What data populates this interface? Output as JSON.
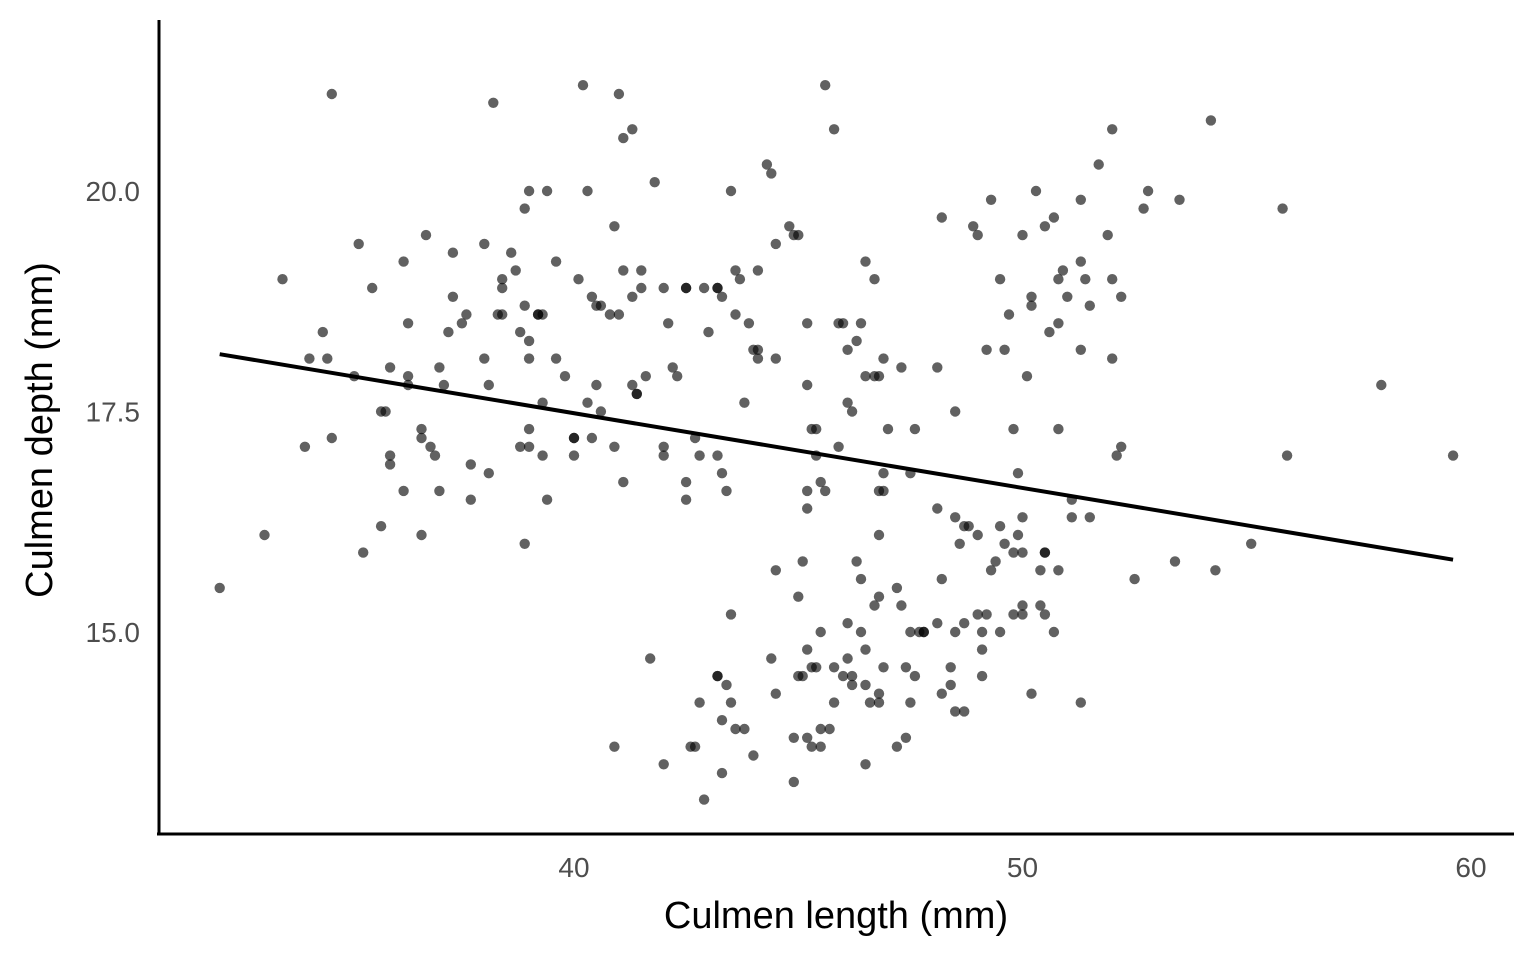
{
  "chart_data": {
    "type": "scatter",
    "title": "",
    "xlabel": "Culmen length (mm)",
    "ylabel": "Culmen depth (mm)",
    "xlim": [
      31.2,
      61.0
    ],
    "ylim": [
      12.7,
      21.9
    ],
    "x_ticks": [
      40,
      50,
      60
    ],
    "x_tick_labels": [
      "40",
      "50",
      "60"
    ],
    "y_ticks": [
      15.0,
      17.5,
      20.0
    ],
    "y_tick_labels": [
      "15.0",
      "17.5",
      "20.0"
    ],
    "grid": false,
    "point_color": "#000000",
    "point_opacity": 0.62,
    "trend_line": {
      "x": [
        32.1,
        59.6
      ],
      "y": [
        18.15,
        15.82
      ]
    },
    "points": [
      [
        32.1,
        15.5
      ],
      [
        33.1,
        16.1
      ],
      [
        33.5,
        19.0
      ],
      [
        34.0,
        17.1
      ],
      [
        34.1,
        18.1
      ],
      [
        34.4,
        18.4
      ],
      [
        34.5,
        18.1
      ],
      [
        34.6,
        21.1
      ],
      [
        34.6,
        17.2
      ],
      [
        35.1,
        17.9
      ],
      [
        35.2,
        19.4
      ],
      [
        35.3,
        15.9
      ],
      [
        35.5,
        18.9
      ],
      [
        35.7,
        16.2
      ],
      [
        35.7,
        17.5
      ],
      [
        35.8,
        17.5
      ],
      [
        35.9,
        16.9
      ],
      [
        35.9,
        17.0
      ],
      [
        35.9,
        18.0
      ],
      [
        36.2,
        19.2
      ],
      [
        36.2,
        16.6
      ],
      [
        36.3,
        18.5
      ],
      [
        36.3,
        17.8
      ],
      [
        36.3,
        17.9
      ],
      [
        36.6,
        17.3
      ],
      [
        36.6,
        17.2
      ],
      [
        36.6,
        16.1
      ],
      [
        36.7,
        19.5
      ],
      [
        36.8,
        17.1
      ],
      [
        36.9,
        17.0
      ],
      [
        37.0,
        16.6
      ],
      [
        37.0,
        18.0
      ],
      [
        37.1,
        17.8
      ],
      [
        37.2,
        18.4
      ],
      [
        37.3,
        19.3
      ],
      [
        37.3,
        18.8
      ],
      [
        37.5,
        18.5
      ],
      [
        37.6,
        18.6
      ],
      [
        37.7,
        16.5
      ],
      [
        37.7,
        16.9
      ],
      [
        38.0,
        19.4
      ],
      [
        38.0,
        18.1
      ],
      [
        38.1,
        16.8
      ],
      [
        38.1,
        17.8
      ],
      [
        38.2,
        21.0
      ],
      [
        38.3,
        18.6
      ],
      [
        38.4,
        19.0
      ],
      [
        38.4,
        18.6
      ],
      [
        38.4,
        18.9
      ],
      [
        38.6,
        19.3
      ],
      [
        38.7,
        19.1
      ],
      [
        38.8,
        17.1
      ],
      [
        38.8,
        18.4
      ],
      [
        38.9,
        19.8
      ],
      [
        38.9,
        16.0
      ],
      [
        38.9,
        18.7
      ],
      [
        39.0,
        20.0
      ],
      [
        39.0,
        18.3
      ],
      [
        39.0,
        17.3
      ],
      [
        39.0,
        18.1
      ],
      [
        39.0,
        17.1
      ],
      [
        39.2,
        18.6
      ],
      [
        39.2,
        18.6
      ],
      [
        39.3,
        17.6
      ],
      [
        39.3,
        17.0
      ],
      [
        39.3,
        18.6
      ],
      [
        39.4,
        16.5
      ],
      [
        39.4,
        20.0
      ],
      [
        39.6,
        18.1
      ],
      [
        39.6,
        19.2
      ],
      [
        39.8,
        17.9
      ],
      [
        40.0,
        17.2
      ],
      [
        40.0,
        17.0
      ],
      [
        40.0,
        17.2
      ],
      [
        40.1,
        19.0
      ],
      [
        40.2,
        21.2
      ],
      [
        40.3,
        20.0
      ],
      [
        40.3,
        17.6
      ],
      [
        40.4,
        18.8
      ],
      [
        40.4,
        17.2
      ],
      [
        40.5,
        18.7
      ],
      [
        40.5,
        17.8
      ],
      [
        40.6,
        17.5
      ],
      [
        40.6,
        18.7
      ],
      [
        40.8,
        18.6
      ],
      [
        40.9,
        17.1
      ],
      [
        40.9,
        19.6
      ],
      [
        41.0,
        18.6
      ],
      [
        41.0,
        21.1
      ],
      [
        41.1,
        20.6
      ],
      [
        41.1,
        19.1
      ],
      [
        41.1,
        16.7
      ],
      [
        41.3,
        17.8
      ],
      [
        41.3,
        18.8
      ],
      [
        41.3,
        20.7
      ],
      [
        41.4,
        17.7
      ],
      [
        41.4,
        17.7
      ],
      [
        41.5,
        19.1
      ],
      [
        41.5,
        18.9
      ],
      [
        41.6,
        17.9
      ],
      [
        41.8,
        20.1
      ],
      [
        42.0,
        18.9
      ],
      [
        42.0,
        17.0
      ],
      [
        42.0,
        17.1
      ],
      [
        42.1,
        18.5
      ],
      [
        42.2,
        18.0
      ],
      [
        42.3,
        17.9
      ],
      [
        42.5,
        18.9
      ],
      [
        42.5,
        16.5
      ],
      [
        42.5,
        18.9
      ],
      [
        42.7,
        17.2
      ],
      [
        42.8,
        17.0
      ],
      [
        42.9,
        18.9
      ],
      [
        43.0,
        18.4
      ],
      [
        43.2,
        17.0
      ],
      [
        43.2,
        18.9
      ],
      [
        43.2,
        18.9
      ],
      [
        43.3,
        18.8
      ],
      [
        43.3,
        16.8
      ],
      [
        43.4,
        16.6
      ],
      [
        43.5,
        20.0
      ],
      [
        43.6,
        19.1
      ],
      [
        43.6,
        18.6
      ],
      [
        43.7,
        19.0
      ],
      [
        43.8,
        17.6
      ],
      [
        43.9,
        18.5
      ],
      [
        44.0,
        18.2
      ],
      [
        44.1,
        18.1
      ],
      [
        44.1,
        18.2
      ],
      [
        44.1,
        19.1
      ],
      [
        44.3,
        20.3
      ],
      [
        44.4,
        20.2
      ],
      [
        44.5,
        19.4
      ],
      [
        44.5,
        18.1
      ],
      [
        44.8,
        19.6
      ],
      [
        44.9,
        19.5
      ],
      [
        45.0,
        19.5
      ],
      [
        45.2,
        18.5
      ],
      [
        45.3,
        17.3
      ],
      [
        45.4,
        17.3
      ],
      [
        45.5,
        16.7
      ],
      [
        45.6,
        21.2
      ],
      [
        45.8,
        20.7
      ],
      [
        45.9,
        18.5
      ],
      [
        46.0,
        18.5
      ],
      [
        46.1,
        17.6
      ],
      [
        46.3,
        18.3
      ],
      [
        46.4,
        18.5
      ],
      [
        46.5,
        19.2
      ],
      [
        46.7,
        19.0
      ],
      [
        46.8,
        16.6
      ],
      [
        46.9,
        18.1
      ],
      [
        47.3,
        18.0
      ],
      [
        47.6,
        17.3
      ],
      [
        48.1,
        18.0
      ],
      [
        48.2,
        19.7
      ],
      [
        48.5,
        17.5
      ],
      [
        48.9,
        19.6
      ],
      [
        49.0,
        19.5
      ],
      [
        49.2,
        18.2
      ],
      [
        49.3,
        19.9
      ],
      [
        49.5,
        19.0
      ],
      [
        49.6,
        18.2
      ],
      [
        49.7,
        18.6
      ],
      [
        49.8,
        17.3
      ],
      [
        50.0,
        19.5
      ],
      [
        50.1,
        17.9
      ],
      [
        50.2,
        18.8
      ],
      [
        50.2,
        18.7
      ],
      [
        50.3,
        20.0
      ],
      [
        50.5,
        19.6
      ],
      [
        50.6,
        18.4
      ],
      [
        50.7,
        19.7
      ],
      [
        50.8,
        18.5
      ],
      [
        50.8,
        19.0
      ],
      [
        50.9,
        19.1
      ],
      [
        51.0,
        18.8
      ],
      [
        51.3,
        19.9
      ],
      [
        51.3,
        18.2
      ],
      [
        51.3,
        19.2
      ],
      [
        51.4,
        19.0
      ],
      [
        51.5,
        18.7
      ],
      [
        51.7,
        20.3
      ],
      [
        51.9,
        19.5
      ],
      [
        52.0,
        18.1
      ],
      [
        52.0,
        20.7
      ],
      [
        52.0,
        19.0
      ],
      [
        52.2,
        18.8
      ],
      [
        52.7,
        19.8
      ],
      [
        52.8,
        20.0
      ],
      [
        53.5,
        19.9
      ],
      [
        54.2,
        20.8
      ],
      [
        55.8,
        19.8
      ],
      [
        58.0,
        17.8
      ],
      [
        46.1,
        18.2
      ],
      [
        45.9,
        17.1
      ],
      [
        46.2,
        17.5
      ],
      [
        46.5,
        17.9
      ],
      [
        46.9,
        16.6
      ],
      [
        47.0,
        17.3
      ],
      [
        45.4,
        17.0
      ],
      [
        45.6,
        16.6
      ],
      [
        46.7,
        17.9
      ],
      [
        46.8,
        17.9
      ],
      [
        45.2,
        17.8
      ],
      [
        45.2,
        16.6
      ],
      [
        45.2,
        16.4
      ],
      [
        46.9,
        16.8
      ],
      [
        42.5,
        16.7
      ],
      [
        50.8,
        17.3
      ],
      [
        52.1,
        17.0
      ],
      [
        52.2,
        17.1
      ],
      [
        49.9,
        16.8
      ],
      [
        51.1,
        16.5
      ],
      [
        51.1,
        16.3
      ],
      [
        51.5,
        16.3
      ],
      [
        55.9,
        17.0
      ],
      [
        59.6,
        17.0
      ],
      [
        46.8,
        16.1
      ],
      [
        47.5,
        16.8
      ],
      [
        48.1,
        16.4
      ],
      [
        48.5,
        16.3
      ],
      [
        48.6,
        16.0
      ],
      [
        48.7,
        16.2
      ],
      [
        49.0,
        16.1
      ],
      [
        49.2,
        15.2
      ],
      [
        49.3,
        15.7
      ],
      [
        49.4,
        15.8
      ],
      [
        49.5,
        16.2
      ],
      [
        49.6,
        16.0
      ],
      [
        49.8,
        15.9
      ],
      [
        49.9,
        16.1
      ],
      [
        50.0,
        16.3
      ],
      [
        50.0,
        15.9
      ],
      [
        50.5,
        15.9
      ],
      [
        50.5,
        15.9
      ],
      [
        50.4,
        15.7
      ],
      [
        50.8,
        15.7
      ],
      [
        52.5,
        15.6
      ],
      [
        53.4,
        15.8
      ],
      [
        54.3,
        15.7
      ],
      [
        55.1,
        16.0
      ],
      [
        44.5,
        15.7
      ],
      [
        45.1,
        15.8
      ],
      [
        45.3,
        13.7
      ],
      [
        45.5,
        13.7
      ],
      [
        45.5,
        13.9
      ],
      [
        45.7,
        13.9
      ],
      [
        45.8,
        14.6
      ],
      [
        46.0,
        14.5
      ],
      [
        46.1,
        14.7
      ],
      [
        46.1,
        15.1
      ],
      [
        46.2,
        14.4
      ],
      [
        46.2,
        14.5
      ],
      [
        46.3,
        15.8
      ],
      [
        46.4,
        15.0
      ],
      [
        46.4,
        15.6
      ],
      [
        46.5,
        14.8
      ],
      [
        46.5,
        14.4
      ],
      [
        46.5,
        13.5
      ],
      [
        46.6,
        14.2
      ],
      [
        46.7,
        15.3
      ],
      [
        46.8,
        15.4
      ],
      [
        46.8,
        14.3
      ],
      [
        46.9,
        14.6
      ],
      [
        47.2,
        15.5
      ],
      [
        47.2,
        13.7
      ],
      [
        47.3,
        15.3
      ],
      [
        47.4,
        14.6
      ],
      [
        47.4,
        13.8
      ],
      [
        47.5,
        14.2
      ],
      [
        47.5,
        15.0
      ],
      [
        47.6,
        14.5
      ],
      [
        47.7,
        15.0
      ],
      [
        47.8,
        15.0
      ],
      [
        48.1,
        15.1
      ],
      [
        48.2,
        14.3
      ],
      [
        48.2,
        15.6
      ],
      [
        48.4,
        14.4
      ],
      [
        48.4,
        14.6
      ],
      [
        48.5,
        14.1
      ],
      [
        48.5,
        15.0
      ],
      [
        48.7,
        14.1
      ],
      [
        48.7,
        15.1
      ],
      [
        48.8,
        16.2
      ],
      [
        49.0,
        15.2
      ],
      [
        49.1,
        14.5
      ],
      [
        49.1,
        14.8
      ],
      [
        49.1,
        15.0
      ],
      [
        49.5,
        15.0
      ],
      [
        49.8,
        15.2
      ],
      [
        50.0,
        15.2
      ],
      [
        50.0,
        15.3
      ],
      [
        50.2,
        14.3
      ],
      [
        50.4,
        15.3
      ],
      [
        50.5,
        15.2
      ],
      [
        50.7,
        15.0
      ],
      [
        51.3,
        14.2
      ],
      [
        43.2,
        14.5
      ],
      [
        43.3,
        14.0
      ],
      [
        43.4,
        14.4
      ],
      [
        43.5,
        14.2
      ],
      [
        43.6,
        13.9
      ],
      [
        43.8,
        13.9
      ],
      [
        44.0,
        13.6
      ],
      [
        44.4,
        14.7
      ],
      [
        44.5,
        14.3
      ],
      [
        44.9,
        13.8
      ],
      [
        44.9,
        13.3
      ],
      [
        45.0,
        15.4
      ],
      [
        45.0,
        14.5
      ],
      [
        45.1,
        14.5
      ],
      [
        45.2,
        14.8
      ],
      [
        45.2,
        13.8
      ],
      [
        45.3,
        14.6
      ],
      [
        45.4,
        14.6
      ],
      [
        45.5,
        15.0
      ],
      [
        45.8,
        14.2
      ],
      [
        41.7,
        14.7
      ],
      [
        40.9,
        13.7
      ],
      [
        42.0,
        13.5
      ],
      [
        42.6,
        13.7
      ],
      [
        42.7,
        13.7
      ],
      [
        42.8,
        14.2
      ],
      [
        42.9,
        13.1
      ],
      [
        43.2,
        14.5
      ],
      [
        43.3,
        13.4
      ],
      [
        43.5,
        15.2
      ],
      [
        46.8,
        14.2
      ],
      [
        47.8,
        15.0
      ]
    ]
  }
}
